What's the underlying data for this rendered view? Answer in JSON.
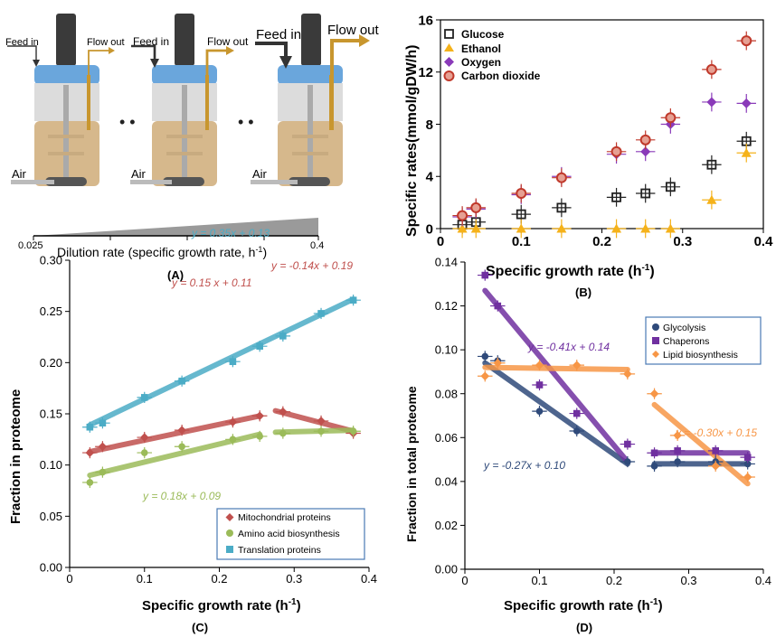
{
  "panel_a": {
    "feed_in": "Feed in",
    "flow_out": "Flow out",
    "air": "Air",
    "dots": "• •",
    "dilution_min": "0.025",
    "dilution_max": "0.4",
    "dilution_label": "Dilution rate (specific growth rate, h",
    "dilution_sup": "-1",
    "dilution_close": ")",
    "panel_label": "(A)"
  },
  "chart_data": [
    {
      "id": "B",
      "type": "scatter",
      "panel_label": "(B)",
      "xlabel": "Specific growth rate (h",
      "xlabel_sup": "-1",
      "xlabel_close": ")",
      "ylabel": "Specific rates(mmol/gDW/h)",
      "xlim": [
        0,
        0.4
      ],
      "ylim": [
        0,
        16
      ],
      "xticks": [
        "0",
        "0.1",
        "0.2",
        "0.3",
        "0.4"
      ],
      "xtick_values": [
        0,
        0.1,
        0.2,
        0.3,
        0.4
      ],
      "yticks": [
        "0",
        "4",
        "8",
        "12",
        "16"
      ],
      "ytick_values": [
        0,
        4,
        8,
        12,
        16
      ],
      "legend_position": "top-left",
      "series": [
        {
          "name": "Glucose",
          "color": "#222222",
          "marker": "open-square",
          "x": [
            0.027,
            0.044,
            0.1,
            0.15,
            0.218,
            0.254,
            0.285,
            0.336,
            0.379
          ],
          "y": [
            0.3,
            0.5,
            1.1,
            1.6,
            2.4,
            2.7,
            3.2,
            4.9,
            6.7
          ]
        },
        {
          "name": "Ethanol",
          "color": "#f5b21a",
          "marker": "triangle",
          "x": [
            0.027,
            0.044,
            0.1,
            0.15,
            0.218,
            0.254,
            0.285,
            0.336,
            0.379
          ],
          "y": [
            0,
            0,
            0,
            0,
            0,
            0,
            0,
            2.2,
            5.8
          ]
        },
        {
          "name": "Oxygen",
          "color": "#8a3ab9",
          "marker": "diamond",
          "x": [
            0.027,
            0.044,
            0.1,
            0.15,
            0.218,
            0.254,
            0.285,
            0.336,
            0.379
          ],
          "y": [
            0.9,
            1.5,
            2.6,
            4.0,
            5.7,
            5.9,
            8.0,
            9.7,
            9.6
          ]
        },
        {
          "name": "Carbon dioxide",
          "color": "#c0392b",
          "marker": "open-circle",
          "x": [
            0.027,
            0.044,
            0.1,
            0.15,
            0.218,
            0.254,
            0.285,
            0.336,
            0.379
          ],
          "y": [
            1.0,
            1.6,
            2.7,
            3.9,
            5.9,
            6.8,
            8.5,
            12.2,
            14.4
          ]
        }
      ]
    },
    {
      "id": "C",
      "type": "scatter",
      "panel_label": "(C)",
      "xlabel": "Specific growth rate (h",
      "xlabel_sup": "-1",
      "xlabel_close": ")",
      "ylabel": "Fraction in proteome",
      "xlim": [
        0,
        0.4
      ],
      "ylim": [
        0,
        0.3
      ],
      "xticks": [
        "0",
        "0.1",
        "0.2",
        "0.3",
        "0.4"
      ],
      "xtick_values": [
        0,
        0.1,
        0.2,
        0.3,
        0.4
      ],
      "yticks": [
        "0.00",
        "0.05",
        "0.10",
        "0.15",
        "0.20",
        "0.25",
        "0.30"
      ],
      "ytick_values": [
        0,
        0.05,
        0.1,
        0.15,
        0.2,
        0.25,
        0.3
      ],
      "legend_position": "bottom-right",
      "series": [
        {
          "name": "Mitochondrial proteins",
          "color": "#c0504d",
          "marker": "diamond",
          "x": [
            0.027,
            0.044,
            0.1,
            0.15,
            0.218,
            0.254,
            0.285,
            0.336,
            0.379
          ],
          "y": [
            0.112,
            0.118,
            0.127,
            0.134,
            0.142,
            0.148,
            0.152,
            0.143,
            0.131
          ],
          "fits": [
            {
              "x0": 0.027,
              "x1": 0.254,
              "y0": 0.113,
              "y1": 0.148
            },
            {
              "x0": 0.275,
              "x1": 0.379,
              "y0": 0.153,
              "y1": 0.133
            }
          ]
        },
        {
          "name": "Amino acid biosynthesis",
          "color": "#9bbb59",
          "marker": "circle",
          "x": [
            0.027,
            0.044,
            0.1,
            0.15,
            0.218,
            0.254,
            0.285,
            0.336,
            0.379
          ],
          "y": [
            0.083,
            0.093,
            0.112,
            0.118,
            0.125,
            0.128,
            0.131,
            0.133,
            0.133
          ],
          "fits": [
            {
              "x0": 0.027,
              "x1": 0.254,
              "y0": 0.09,
              "y1": 0.13
            },
            {
              "x0": 0.275,
              "x1": 0.379,
              "y0": 0.132,
              "y1": 0.134
            }
          ]
        },
        {
          "name": "Translation proteins",
          "color": "#4bacc6",
          "marker": "square",
          "x": [
            0.027,
            0.044,
            0.1,
            0.15,
            0.218,
            0.254,
            0.285,
            0.336,
            0.379
          ],
          "y": [
            0.137,
            0.141,
            0.166,
            0.182,
            0.201,
            0.216,
            0.226,
            0.248,
            0.261
          ],
          "fits": [
            {
              "x0": 0.027,
              "x1": 0.379,
              "y0": 0.139,
              "y1": 0.262
            }
          ]
        }
      ],
      "annotations": [
        {
          "text": "y = 0.35x + 0.13",
          "color": "#4bacc6"
        },
        {
          "text": "y = 0.15 x + 0.11",
          "color": "#c0504d"
        },
        {
          "text": "y = -0.14x + 0.19",
          "color": "#c0504d"
        },
        {
          "text": "y = 0.18x + 0.09",
          "color": "#9bbb59"
        }
      ]
    },
    {
      "id": "D",
      "type": "scatter",
      "panel_label": "(D)",
      "xlabel": "Specific growth rate (h",
      "xlabel_sup": "-1",
      "xlabel_close": ")",
      "ylabel": "Fraction in total proteome",
      "xlim": [
        0,
        0.4
      ],
      "ylim": [
        0,
        0.14
      ],
      "xticks": [
        "0",
        "0.1",
        "0.2",
        "0.3",
        "0.4"
      ],
      "xtick_values": [
        0,
        0.1,
        0.2,
        0.3,
        0.4
      ],
      "yticks": [
        "0.00",
        "0.02",
        "0.04",
        "0.06",
        "0.08",
        "0.10",
        "0.12",
        "0.14"
      ],
      "ytick_values": [
        0,
        0.02,
        0.04,
        0.06,
        0.08,
        0.1,
        0.12,
        0.14
      ],
      "legend_position": "top-right",
      "series": [
        {
          "name": "Glycolysis",
          "color": "#2f4a7a",
          "marker": "circle",
          "x": [
            0.027,
            0.044,
            0.1,
            0.15,
            0.218,
            0.254,
            0.285,
            0.336,
            0.379
          ],
          "y": [
            0.097,
            0.095,
            0.072,
            0.063,
            0.049,
            0.047,
            0.049,
            0.049,
            0.048
          ],
          "fits": [
            {
              "x0": 0.027,
              "x1": 0.218,
              "y0": 0.094,
              "y1": 0.048
            },
            {
              "x0": 0.254,
              "x1": 0.379,
              "y0": 0.048,
              "y1": 0.048
            }
          ]
        },
        {
          "name": "Chaperons",
          "color": "#7030a0",
          "marker": "square",
          "x": [
            0.027,
            0.044,
            0.1,
            0.15,
            0.218,
            0.254,
            0.285,
            0.336,
            0.379
          ],
          "y": [
            0.134,
            0.12,
            0.084,
            0.071,
            0.057,
            0.053,
            0.054,
            0.054,
            0.051
          ],
          "fits": [
            {
              "x0": 0.027,
              "x1": 0.218,
              "y0": 0.127,
              "y1": 0.049
            },
            {
              "x0": 0.254,
              "x1": 0.379,
              "y0": 0.053,
              "y1": 0.053
            }
          ]
        },
        {
          "name": "Lipid biosynthesis",
          "color": "#f79646",
          "marker": "diamond",
          "x": [
            0.027,
            0.044,
            0.1,
            0.15,
            0.218,
            0.254,
            0.285,
            0.336,
            0.379
          ],
          "y": [
            0.088,
            0.094,
            0.093,
            0.093,
            0.089,
            0.08,
            0.061,
            0.047,
            0.042
          ],
          "fits": [
            {
              "x0": 0.027,
              "x1": 0.218,
              "y0": 0.092,
              "y1": 0.091
            },
            {
              "x0": 0.254,
              "x1": 0.379,
              "y0": 0.075,
              "y1": 0.039
            }
          ]
        }
      ],
      "annotations": [
        {
          "text": "y = -0.41x + 0.14",
          "color": "#7030a0"
        },
        {
          "text": "y = -0.27x + 0.10",
          "color": "#2f4a7a"
        },
        {
          "text": "y = -0.30x + 0.15",
          "color": "#f79646"
        }
      ]
    }
  ]
}
